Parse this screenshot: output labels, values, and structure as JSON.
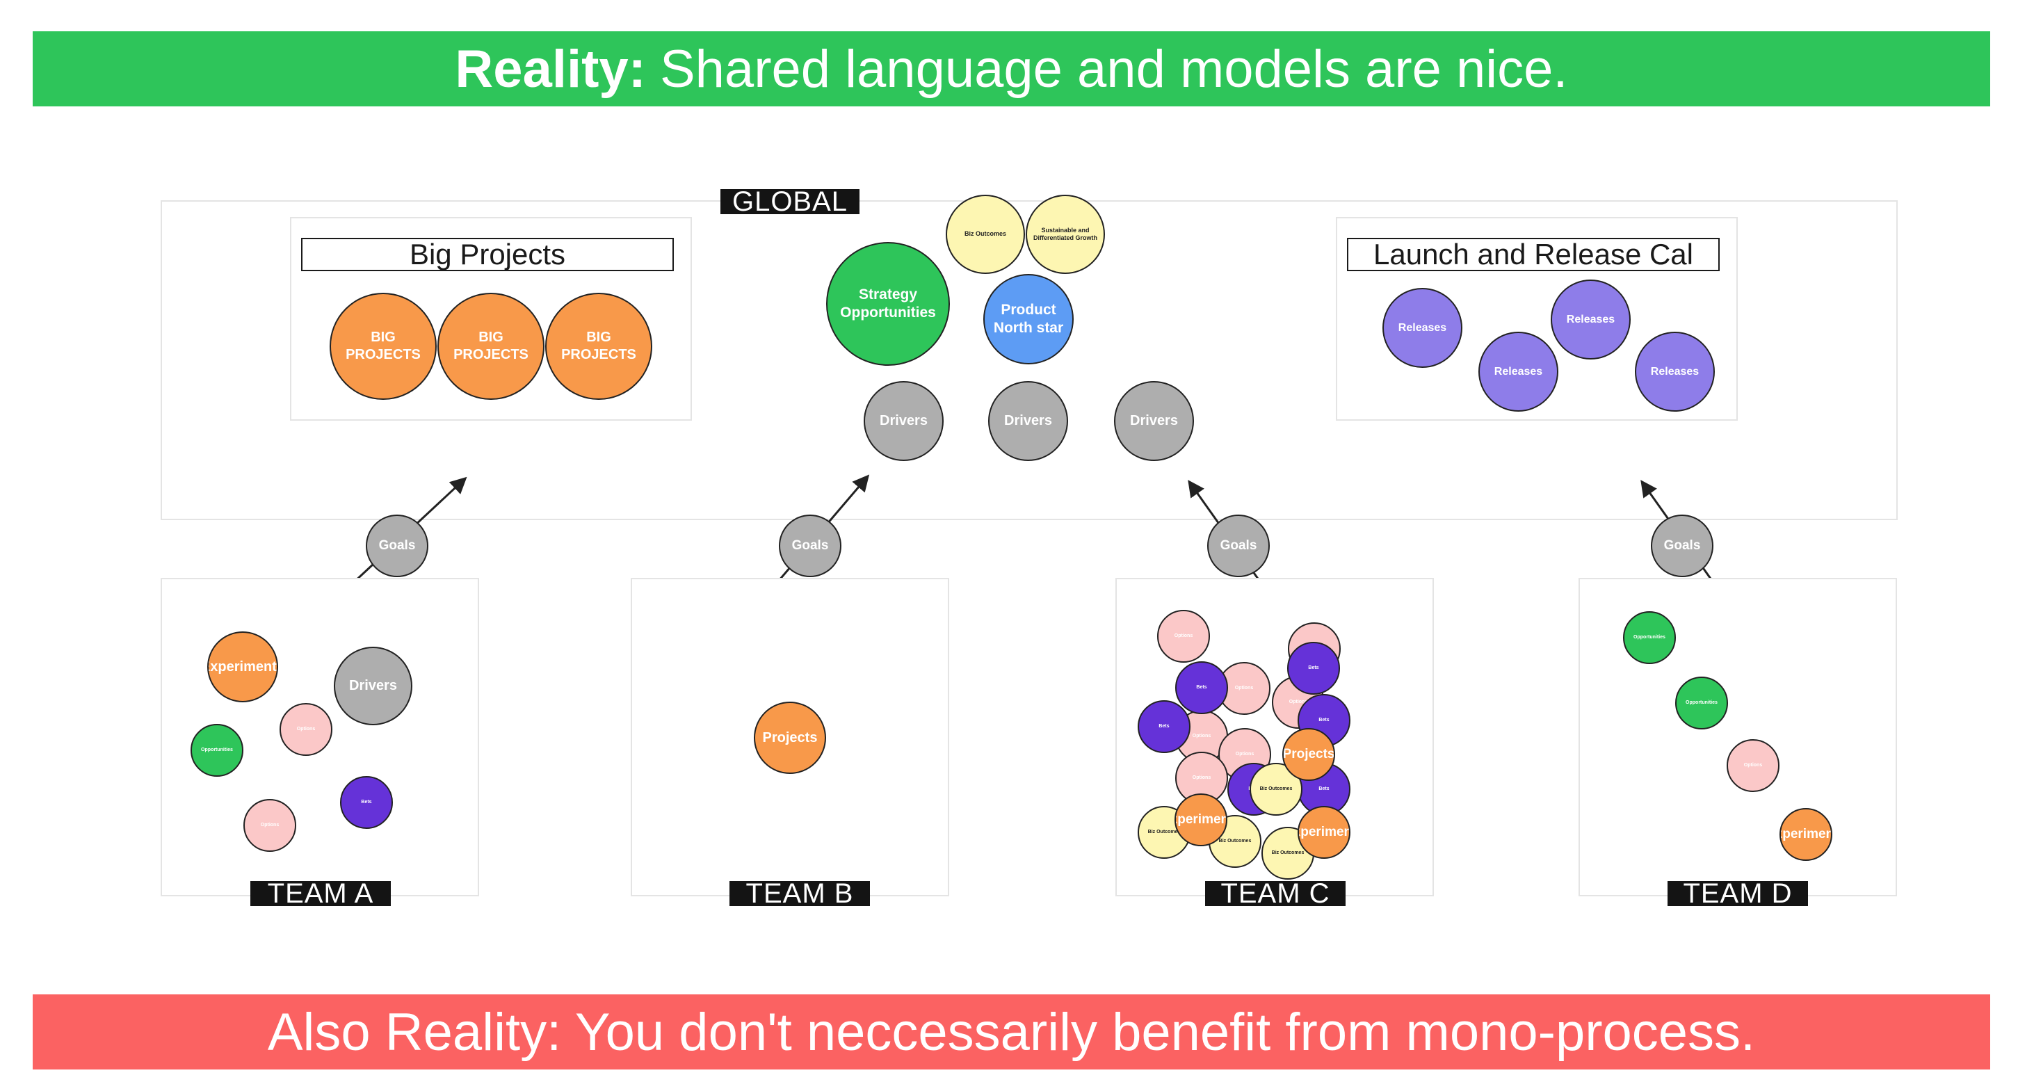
{
  "banner_top": {
    "bold": "Reality:",
    "text": "Shared language and models are nice."
  },
  "banner_bottom": {
    "text": "Also Reality: You don't neccessarily benefit from mono-process."
  },
  "global": {
    "tag": "GLOBAL",
    "big_projects": {
      "title": "Big Projects",
      "items": [
        "BIG PROJECTS",
        "BIG PROJECTS",
        "BIG PROJECTS"
      ]
    },
    "strategy": "Strategy Opportunities",
    "biz_outcomes": "Biz Outcomes",
    "sustainable": "Sustainable and Differentiated Growth",
    "north_star": "Product North star",
    "drivers": [
      "Drivers",
      "Drivers",
      "Drivers"
    ],
    "launch": {
      "title": "Launch and Release Cal",
      "items": [
        "Releases",
        "Releases",
        "Releases",
        "Releases"
      ]
    }
  },
  "goals": [
    "Goals",
    "Goals",
    "Goals",
    "Goals"
  ],
  "teams": {
    "a": {
      "tag": "TEAM A",
      "experiments": "Experiments",
      "drivers": "Drivers",
      "opportunities": "Opportunities",
      "options": [
        "Options",
        "Options"
      ],
      "bets": "Bets"
    },
    "b": {
      "tag": "TEAM B",
      "projects": "Projects"
    },
    "c": {
      "tag": "TEAM C",
      "options": [
        "Options",
        "Options",
        "Options",
        "Options",
        "Options",
        "Options",
        "Options",
        "Options",
        "Options"
      ],
      "bets": [
        "Bets",
        "Bets",
        "Bets",
        "Bets",
        "Bets",
        "Bets"
      ],
      "projects": "Projects",
      "experiments": [
        "Experiments",
        "Experiments"
      ],
      "biz_outcomes": [
        "Biz Outcomes",
        "Biz Outcomes",
        "Biz Outcomes",
        "Biz Outcomes"
      ]
    },
    "d": {
      "tag": "TEAM D",
      "opportunities": [
        "Opportunities",
        "Opportunities"
      ],
      "options": "Options",
      "experiments": "Experiments"
    }
  },
  "colors": {
    "green_banner": "#2ec55a",
    "red_banner": "#fb6262",
    "orange": "#f8994a",
    "gray": "#aeaeae",
    "blue": "#5d9cf4",
    "lavender": "#8e7de9",
    "yellow": "#fdf6b2",
    "pink": "#fbc8c8",
    "purple": "#6532d8"
  }
}
